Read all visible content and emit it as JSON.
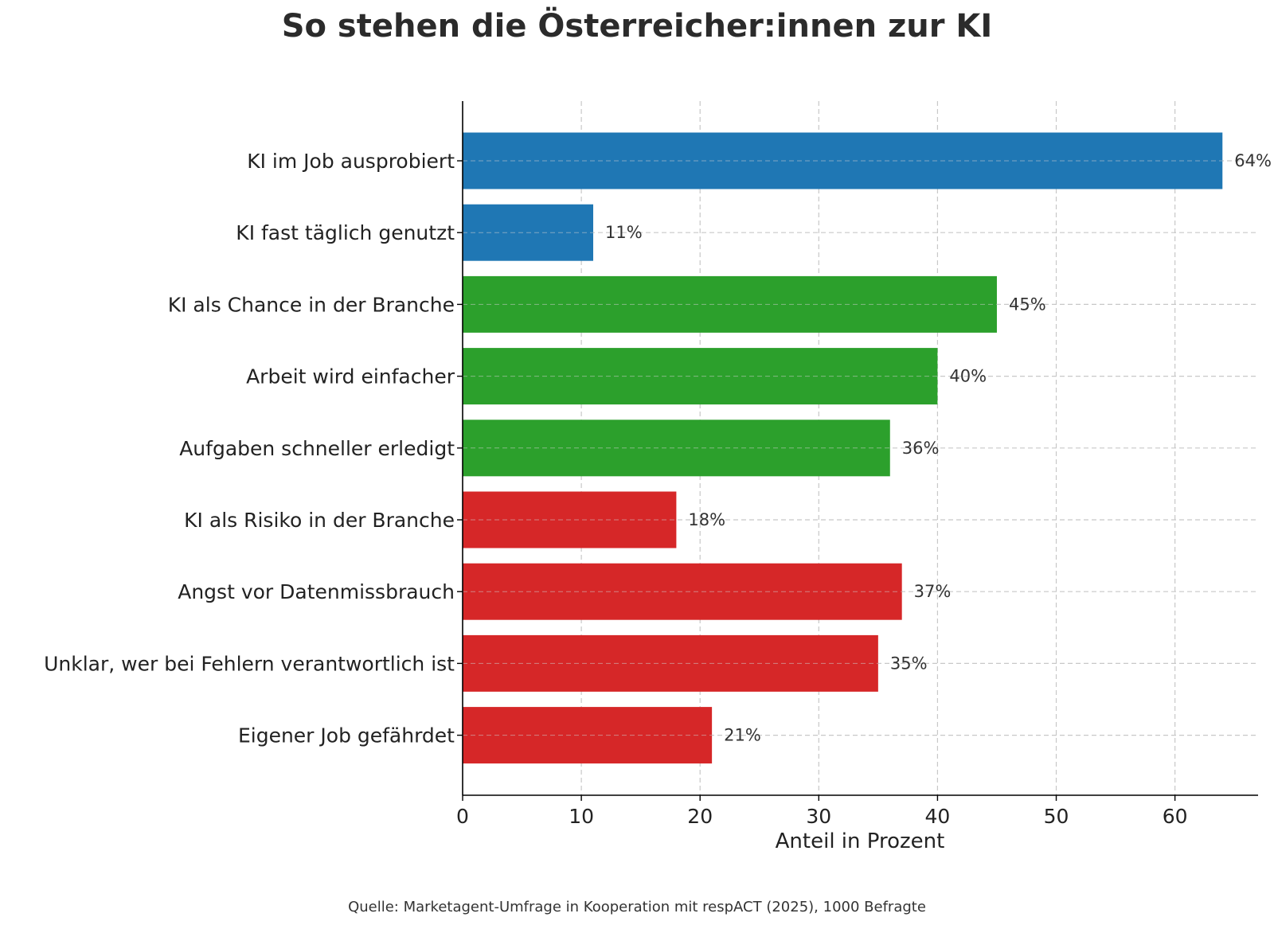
{
  "chart_data": {
    "type": "bar",
    "orientation": "horizontal",
    "title": "So stehen die Österreicher:innen zur KI",
    "xlabel": "Anteil in Prozent",
    "ylabel": "",
    "xlim": [
      0,
      67
    ],
    "xticks": [
      0,
      10,
      20,
      30,
      40,
      50,
      60
    ],
    "grid": true,
    "categories": [
      "KI im Job ausprobiert",
      "KI fast täglich genutzt",
      "KI als Chance in der Branche",
      "Arbeit wird einfacher",
      "Aufgaben schneller erledigt",
      "KI als Risiko in der Branche",
      "Angst vor Datenmissbrauch",
      "Unklar, wer bei Fehlern verantwortlich ist",
      "Eigener Job gefährdet"
    ],
    "values": [
      64,
      11,
      45,
      40,
      36,
      18,
      37,
      35,
      21
    ],
    "data_labels": [
      "64%",
      "11%",
      "45%",
      "40%",
      "36%",
      "18%",
      "37%",
      "35%",
      "21%"
    ],
    "bar_colors": [
      "#1f77b4",
      "#1f77b4",
      "#2ca02c",
      "#2ca02c",
      "#2ca02c",
      "#d62728",
      "#d62728",
      "#d62728",
      "#d62728"
    ],
    "source": "Quelle: Marketagent-Umfrage in Kooperation mit respACT (2025), 1000 Befragte"
  }
}
